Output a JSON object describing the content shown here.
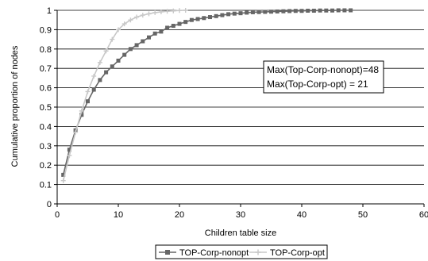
{
  "chart_data": {
    "type": "line",
    "title": "",
    "xlabel": "Children table size",
    "ylabel": "Cumulative proportion of nodes",
    "xlim": [
      0,
      60
    ],
    "ylim": [
      0,
      1
    ],
    "x_ticks": [
      "0",
      "10",
      "20",
      "30",
      "40",
      "50",
      "60"
    ],
    "y_ticks": [
      "0",
      "0.1",
      "0.2",
      "0.3",
      "0.4",
      "0.5",
      "0.6",
      "0.7",
      "0.8",
      "0.9",
      "1"
    ],
    "grid": "horizontal",
    "legend_position": "bottom",
    "annotation": [
      "Max(Top-Corp-nonopt)=48",
      "Max(Top-Corp-opt) = 21"
    ],
    "series": [
      {
        "name": "TOP-Corp-nonopt",
        "color": "#666666",
        "marker": "square",
        "x": [
          1,
          2,
          3,
          4,
          5,
          6,
          7,
          8,
          9,
          10,
          11,
          12,
          13,
          14,
          15,
          16,
          17,
          18,
          19,
          20,
          21,
          22,
          23,
          24,
          25,
          26,
          27,
          28,
          29,
          30,
          31,
          32,
          33,
          34,
          35,
          36,
          37,
          38,
          39,
          40,
          41,
          42,
          43,
          44,
          45,
          46,
          47,
          48
        ],
        "values": [
          0.15,
          0.28,
          0.38,
          0.46,
          0.53,
          0.59,
          0.64,
          0.68,
          0.71,
          0.74,
          0.77,
          0.8,
          0.82,
          0.84,
          0.86,
          0.88,
          0.89,
          0.91,
          0.92,
          0.93,
          0.94,
          0.95,
          0.955,
          0.96,
          0.965,
          0.97,
          0.975,
          0.98,
          0.983,
          0.985,
          0.988,
          0.99,
          0.991,
          0.992,
          0.993,
          0.994,
          0.995,
          0.996,
          0.997,
          0.997,
          0.998,
          0.998,
          0.999,
          0.999,
          0.999,
          1.0,
          1.0,
          1.0
        ]
      },
      {
        "name": "TOP-Corp-opt",
        "color": "#c8c8c8",
        "marker": "plus",
        "x": [
          1,
          2,
          3,
          4,
          5,
          6,
          7,
          8,
          9,
          10,
          11,
          12,
          13,
          14,
          15,
          16,
          17,
          18,
          19,
          20,
          21
        ],
        "values": [
          0.12,
          0.25,
          0.37,
          0.48,
          0.58,
          0.66,
          0.73,
          0.79,
          0.85,
          0.9,
          0.93,
          0.95,
          0.965,
          0.975,
          0.982,
          0.988,
          0.992,
          0.995,
          0.997,
          0.999,
          1.0
        ]
      }
    ]
  }
}
